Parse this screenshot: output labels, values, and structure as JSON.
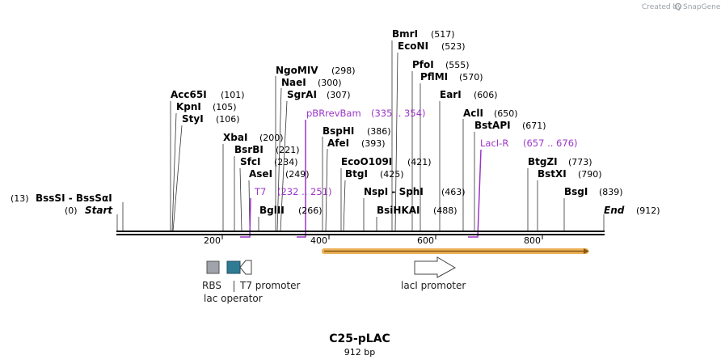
{
  "watermark": {
    "prefix": "Created by",
    "brand": "SnapGene",
    "logo_icon": "snapgene-logo-icon"
  },
  "map": {
    "name": "C25-pLAC",
    "length_label": "912 bp"
  },
  "ticks": [
    "200",
    "400",
    "600",
    "800"
  ],
  "sites": [
    {
      "name": "BmrI",
      "pos": "(517)"
    },
    {
      "name": "EcoNI",
      "pos": "(523)"
    },
    {
      "name": "PfoI",
      "pos": "(555)"
    },
    {
      "name": "PflMI",
      "pos": "(570)"
    },
    {
      "name": "EarI",
      "pos": "(606)"
    },
    {
      "name": "AclI",
      "pos": "(650)"
    },
    {
      "name": "BstAPI",
      "pos": "(671)"
    },
    {
      "name": "NgoMIV",
      "pos": "(298)"
    },
    {
      "name": "NaeI",
      "pos": "(300)"
    },
    {
      "name": "SgrAI",
      "pos": "(307)"
    },
    {
      "name": "Acc65I",
      "pos": "(101)"
    },
    {
      "name": "KpnI",
      "pos": "(105)"
    },
    {
      "name": "StyI",
      "pos": "(106)"
    },
    {
      "name": "BspHI",
      "pos": "(386)"
    },
    {
      "name": "AfeI",
      "pos": "(393)"
    },
    {
      "name": "XbaI",
      "pos": "(200)"
    },
    {
      "name": "BsrBI",
      "pos": "(221)"
    },
    {
      "name": "SfcI",
      "pos": "(234)"
    },
    {
      "name": "AseI",
      "pos": "(249)"
    },
    {
      "name": "EcoO109I",
      "pos": "(421)"
    },
    {
      "name": "BtgI",
      "pos": "(425)"
    },
    {
      "name": "NspI - SphI",
      "pos": "(463)"
    },
    {
      "name": "BglII",
      "pos": "(266)"
    },
    {
      "name": "BsiHKAI",
      "pos": "(488)"
    },
    {
      "name": "BtgZI",
      "pos": "(773)"
    },
    {
      "name": "BstXI",
      "pos": "(790)"
    },
    {
      "name": "BsgI",
      "pos": "(839)"
    }
  ],
  "left_sites": [
    {
      "name": "BssSI - BssSαI",
      "pos": "(13)"
    },
    {
      "name": "Start",
      "pos": "(0)"
    }
  ],
  "end_site": {
    "name": "End",
    "pos": "(912)"
  },
  "primers": [
    {
      "name": "pBRrevBam",
      "range": "(335 .. 354)"
    },
    {
      "name": "LacI-R",
      "range": "(657 .. 676)"
    },
    {
      "name": "T7",
      "range": "(232 .. 251)"
    }
  ],
  "features": [
    {
      "label": "RBS",
      "icon": "rbs-box-icon",
      "color": "#a0a3a9"
    },
    {
      "label": "T7 promoter",
      "icon": "t7-promoter-arrow-icon",
      "color": "#ffffff"
    },
    {
      "label": "lac operator",
      "icon": "lac-operator-box-icon",
      "color": "#2f7b93"
    },
    {
      "label": "lacI promoter",
      "icon": "laci-promoter-arrow-icon",
      "color": "#ffffff"
    }
  ],
  "orf": {
    "color": "#e8a33c"
  }
}
